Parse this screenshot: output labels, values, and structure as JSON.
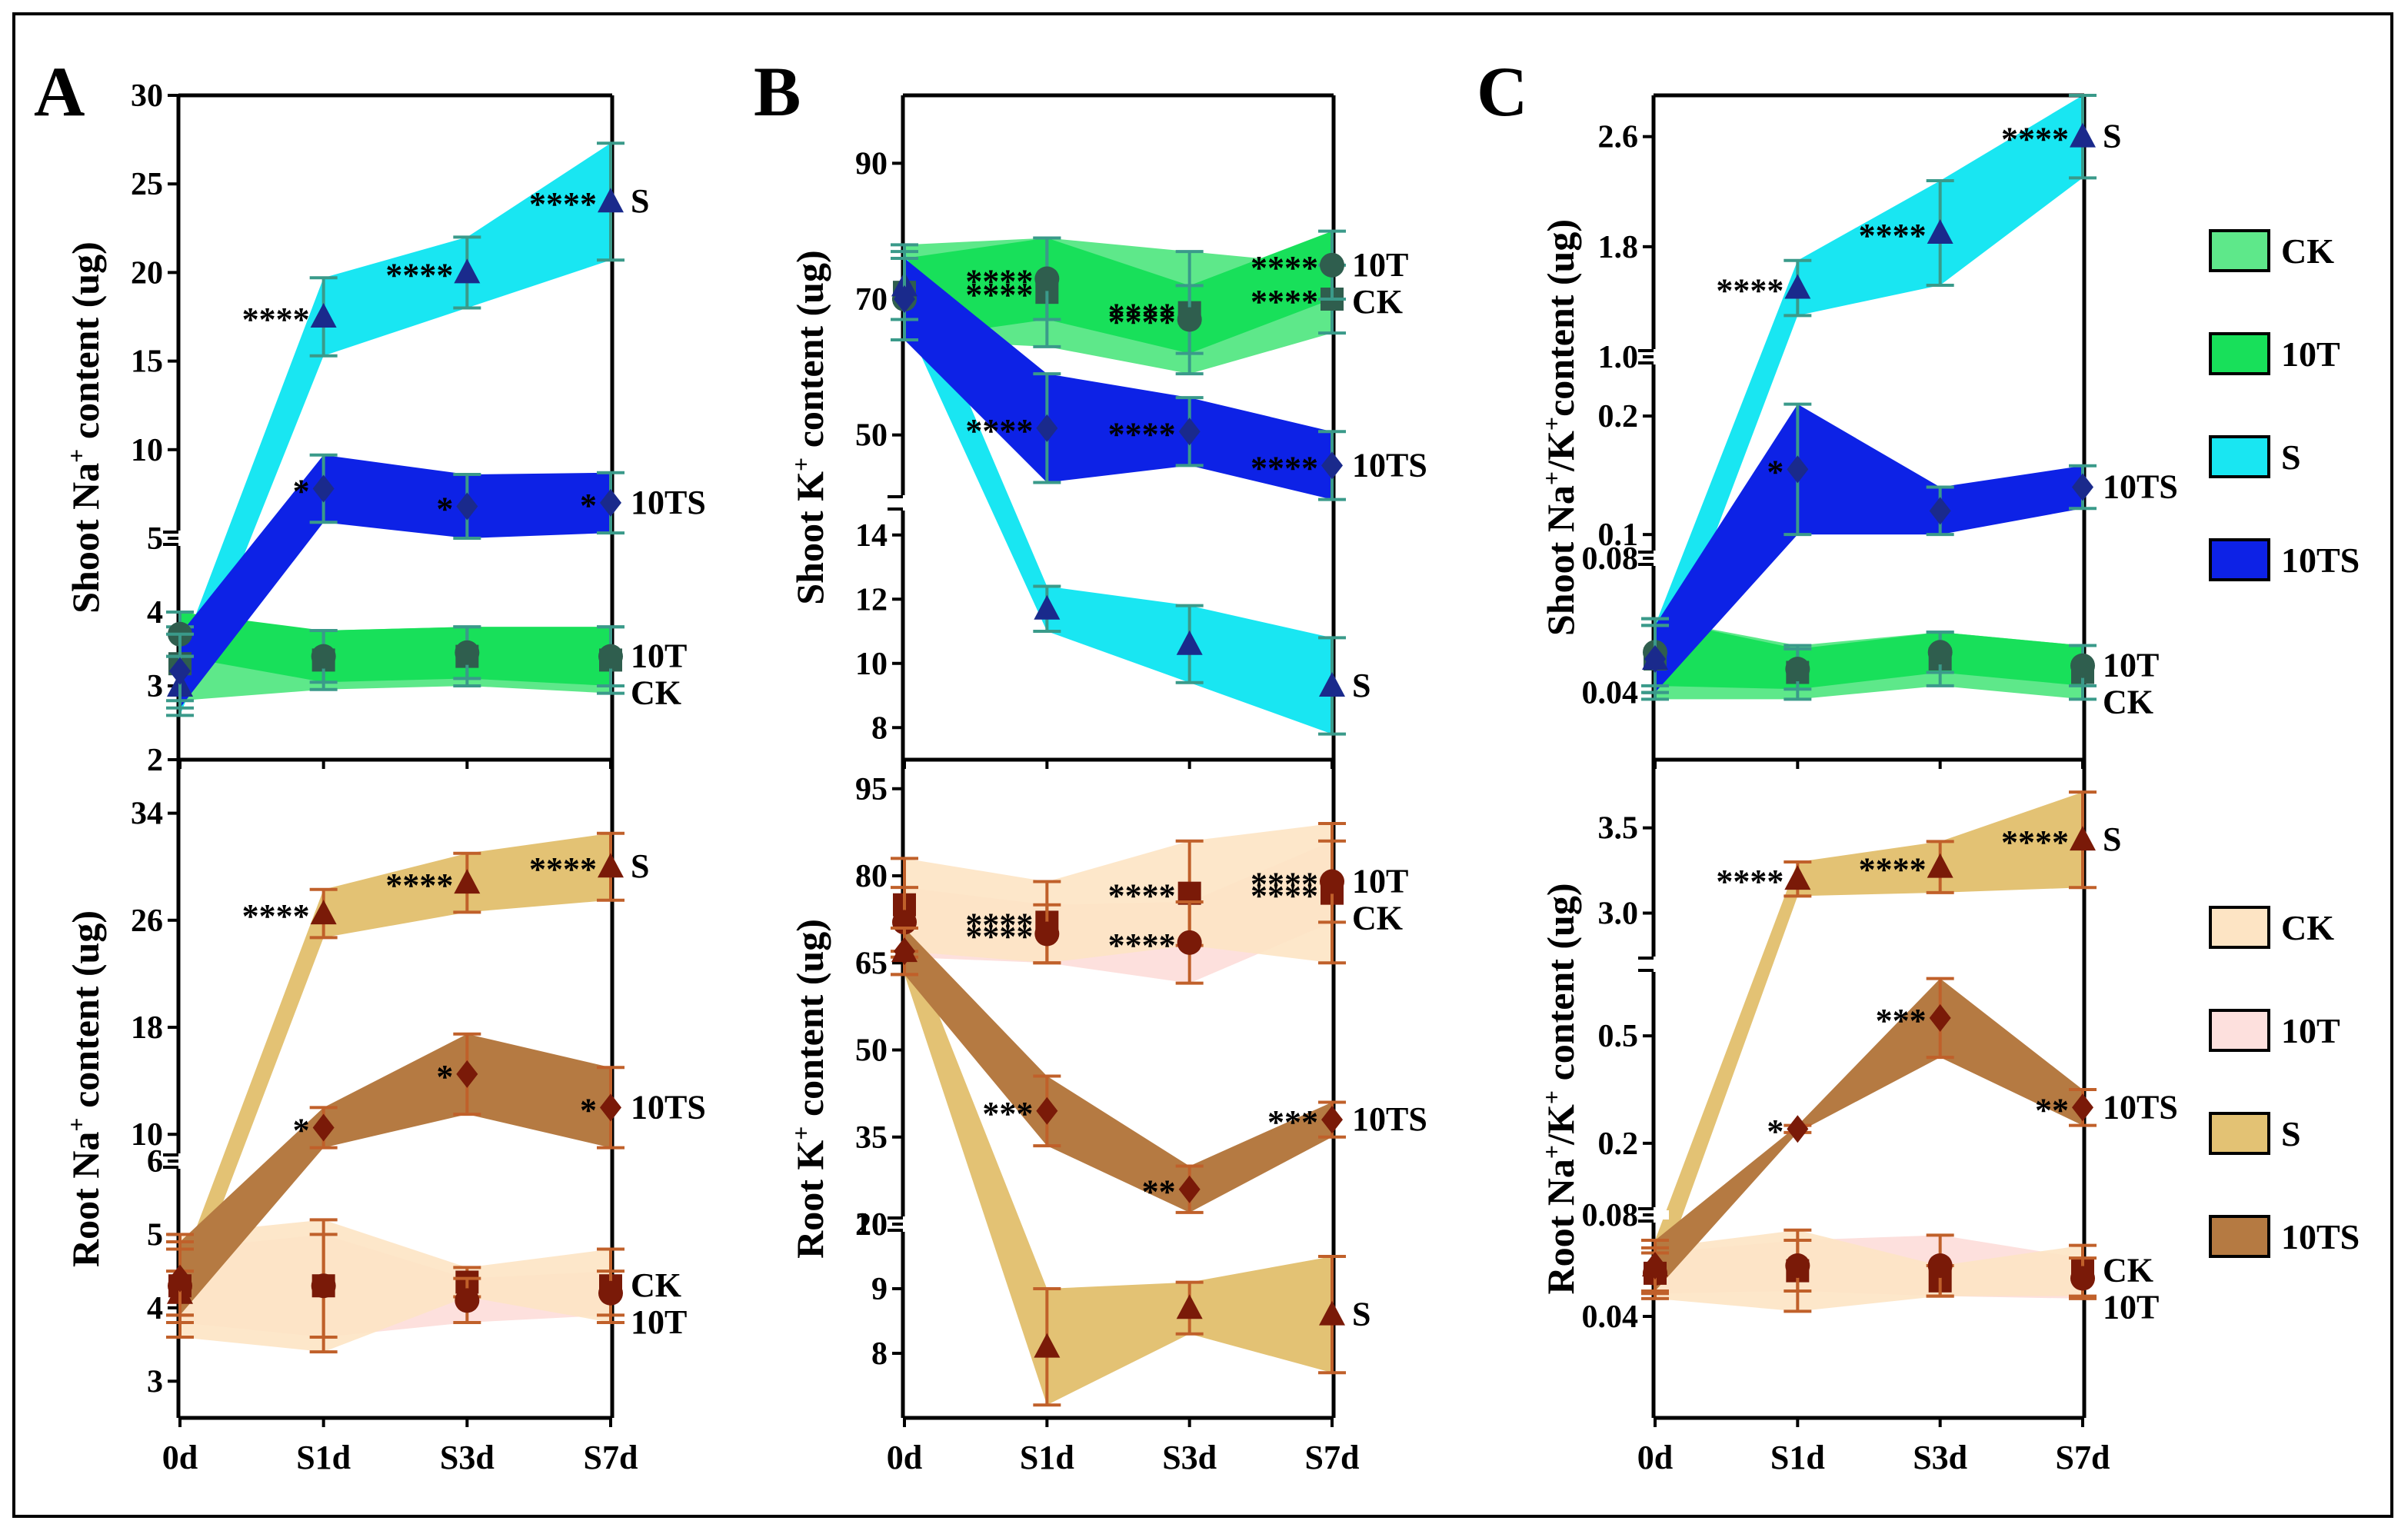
{
  "categories": [
    "0d",
    "S1d",
    "S3d",
    "S7d"
  ],
  "colors": {
    "shoot": {
      "CK": "#5ee88a",
      "10T": "#18e05a",
      "S": "#19e6f2",
      "10TS": "#0d22e6"
    },
    "root": {
      "CK": "#fde4c4",
      "10T": "#fde0dd",
      "S": "#e3c274",
      "10TS": "#b57a42"
    },
    "shoot_marker": "#2f5e4e",
    "shoot_ts_marker": "#1a2a8c",
    "root_marker": "#7a1a08",
    "shoot_errbar": "#3a9a8a",
    "root_errbar": "#c0602a"
  },
  "legend_shoot": [
    "CK",
    "10T",
    "S",
    "10TS"
  ],
  "legend_root": [
    "CK",
    "10T",
    "S",
    "10TS"
  ],
  "chart_data": [
    {
      "type": "line",
      "panel_label": "A",
      "subplot": "upper",
      "ylabel": "Shoot Na+ content (ug)",
      "ylabel_main": "Shoot Na",
      "ylabel_sup": "+",
      "ylabel_tail": " content (ug)",
      "y_segments": [
        {
          "range": [
            2,
            5
          ],
          "ticks": [
            2,
            3,
            4,
            5
          ],
          "tick_labels": [
            "2",
            "3",
            "4",
            "5"
          ]
        },
        {
          "range": [
            5,
            30
          ],
          "ticks": [
            5,
            10,
            15,
            20,
            25,
            30
          ],
          "tick_labels": [
            "",
            "10",
            "15",
            "20",
            "25",
            "30"
          ]
        }
      ],
      "series": [
        {
          "name": "CK",
          "values": [
            3.3,
            3.35,
            3.4,
            3.35
          ],
          "err": [
            0.5,
            0.4,
            0.4,
            0.45
          ],
          "marker": "square",
          "end_label": "CK",
          "stars": [
            "",
            "",
            "",
            ""
          ]
        },
        {
          "name": "10T",
          "values": [
            3.7,
            3.4,
            3.45,
            3.4
          ],
          "err": [
            0.3,
            0.35,
            0.35,
            0.4
          ],
          "marker": "circle",
          "end_label": "10T",
          "stars": [
            "",
            "",
            "",
            ""
          ]
        },
        {
          "name": "S",
          "values": [
            3.0,
            17.5,
            20.0,
            24.0
          ],
          "err": [
            0.4,
            2.2,
            2.0,
            3.3
          ],
          "marker": "triangle",
          "end_label": "S",
          "stars": [
            "",
            "****",
            "****",
            "****"
          ]
        },
        {
          "name": "10TS",
          "values": [
            3.2,
            7.8,
            6.8,
            7.0
          ],
          "err": [
            0.5,
            1.9,
            1.8,
            1.7
          ],
          "marker": "diamond",
          "end_label": "10TS",
          "stars": [
            "",
            "*",
            "*",
            "*"
          ]
        }
      ]
    },
    {
      "type": "line",
      "panel_label": "",
      "subplot": "lower",
      "ylabel": "Root Na+ content (ug)",
      "ylabel_main": "Root Na",
      "ylabel_sup": "+",
      "ylabel_tail": " content (ug)",
      "y_segments": [
        {
          "range": [
            2.5,
            6
          ],
          "ticks": [
            3,
            4,
            5,
            6
          ],
          "tick_labels": [
            "3",
            "4",
            "5",
            "6"
          ]
        },
        {
          "range": [
            8,
            38
          ],
          "ticks": [
            10,
            18,
            26,
            34
          ],
          "tick_labels": [
            "10",
            "18",
            "26",
            "34"
          ]
        }
      ],
      "series": [
        {
          "name": "CK",
          "values": [
            4.3,
            4.3,
            4.35,
            4.3
          ],
          "err": [
            0.7,
            0.9,
            0.2,
            0.5
          ],
          "marker": "square",
          "end_label": "CK",
          "stars": [
            "",
            "",
            "",
            ""
          ]
        },
        {
          "name": "10T",
          "values": [
            4.3,
            4.3,
            4.1,
            4.2
          ],
          "err": [
            0.5,
            0.7,
            0.3,
            0.3
          ],
          "marker": "circle",
          "end_label": "10T",
          "stars": [
            "",
            "",
            "",
            ""
          ]
        },
        {
          "name": "S",
          "values": [
            4.2,
            26.5,
            28.8,
            30.0
          ],
          "err": [
            0.3,
            1.8,
            2.2,
            2.5
          ],
          "marker": "triangle",
          "end_label": "S",
          "stars": [
            "",
            "****",
            "****",
            "****"
          ]
        },
        {
          "name": "10TS",
          "values": [
            4.4,
            10.5,
            14.5,
            12.0
          ],
          "err": [
            0.5,
            1.5,
            3.0,
            3.0
          ],
          "marker": "diamond",
          "end_label": "10TS",
          "stars": [
            "",
            "*",
            "*",
            "*"
          ]
        }
      ]
    },
    {
      "type": "line",
      "panel_label": "B",
      "subplot": "upper",
      "ylabel": "Shoot K+ content (ug)",
      "ylabel_main": "Shoot K",
      "ylabel_sup": "+",
      "ylabel_tail": " content (ug)",
      "y_segments": [
        {
          "range": [
            7,
            15
          ],
          "ticks": [
            8,
            10,
            12,
            14
          ],
          "tick_labels": [
            "8",
            "10",
            "12",
            "14"
          ]
        },
        {
          "range": [
            40,
            100
          ],
          "ticks": [
            50,
            70,
            90
          ],
          "tick_labels": [
            "50",
            "70",
            "90"
          ]
        }
      ],
      "series": [
        {
          "name": "CK",
          "values": [
            71,
            71,
            68,
            70
          ],
          "err": [
            7,
            8,
            9,
            5
          ],
          "marker": "square",
          "end_label": "CK",
          "stars": [
            "",
            "****",
            "****",
            "****"
          ]
        },
        {
          "name": "10T",
          "values": [
            70,
            73,
            67,
            75
          ],
          "err": [
            6,
            6,
            5,
            5
          ],
          "marker": "circle",
          "end_label": "10T",
          "stars": [
            "",
            "****",
            "****",
            "****"
          ]
        },
        {
          "name": "S",
          "values": [
            72,
            11.7,
            10.6,
            9.3
          ],
          "err": [
            5,
            0.7,
            1.2,
            1.5
          ],
          "marker": "triangle",
          "end_label": "S",
          "stars": [
            "",
            "",
            "",
            ""
          ]
        },
        {
          "name": "10TS",
          "values": [
            70,
            51,
            50.5,
            45.5
          ],
          "err": [
            6,
            8,
            5,
            5
          ],
          "marker": "diamond",
          "end_label": "10TS",
          "stars": [
            "",
            "****",
            "****",
            "****"
          ]
        }
      ]
    },
    {
      "type": "line",
      "panel_label": "",
      "subplot": "lower",
      "ylabel": "Root K+ content (ug)",
      "ylabel_main": "Root K",
      "ylabel_sup": "+",
      "ylabel_tail": " content (ug)",
      "y_segments": [
        {
          "range": [
            7,
            10
          ],
          "ticks": [
            8,
            9,
            10
          ],
          "tick_labels": [
            "8",
            "9",
            "10"
          ]
        },
        {
          "range": [
            20,
            100
          ],
          "ticks": [
            20,
            35,
            50,
            65,
            80,
            95
          ],
          "tick_labels": [
            "20",
            "35",
            "50",
            "65",
            "80",
            "95"
          ]
        }
      ],
      "series": [
        {
          "name": "CK",
          "values": [
            75,
            72,
            77,
            77
          ],
          "err": [
            8,
            7,
            9,
            12
          ],
          "marker": "square",
          "end_label": "CK",
          "stars": [
            "",
            "****",
            "****",
            "****"
          ]
        },
        {
          "name": "10T",
          "values": [
            72,
            70,
            68.5,
            79
          ],
          "err": [
            6,
            5,
            7,
            7
          ],
          "marker": "circle",
          "end_label": "10T",
          "stars": [
            "",
            "****",
            "****",
            "****"
          ]
        },
        {
          "name": "S",
          "values": [
            67,
            8.1,
            8.7,
            8.6
          ],
          "err": [
            4,
            0.9,
            0.4,
            0.9
          ],
          "marker": "triangle",
          "end_label": "S",
          "stars": [
            "",
            "",
            "",
            ""
          ]
        },
        {
          "name": "10TS",
          "values": [
            67,
            39.5,
            26,
            38
          ],
          "err": [
            4,
            6,
            4,
            3
          ],
          "marker": "diamond",
          "end_label": "10TS",
          "stars": [
            "",
            "***",
            "**",
            "***"
          ]
        }
      ]
    },
    {
      "type": "line",
      "panel_label": "C",
      "subplot": "upper",
      "ylabel": "Shoot Na+/K+ content (ug)",
      "ylabel_main": "Shoot Na",
      "ylabel_sup": "+",
      "ylabel_mid": "/K",
      "ylabel_sup2": "+",
      "ylabel_tail": "content (ug)",
      "y_segments": [
        {
          "range": [
            0.02,
            0.08
          ],
          "ticks": [
            0.04,
            0.08
          ],
          "tick_labels": [
            "0.04",
            "0.08"
          ]
        },
        {
          "range": [
            0.08,
            0.25
          ],
          "ticks": [
            0.1,
            0.2
          ],
          "tick_labels": [
            "0.1",
            "0.2"
          ]
        },
        {
          "range": [
            1.0,
            2.9
          ],
          "ticks": [
            1.0,
            1.8,
            2.6
          ],
          "tick_labels": [
            "1.0",
            "1.8",
            "2.6"
          ]
        }
      ],
      "series": [
        {
          "name": "CK",
          "values": [
            0.05,
            0.046,
            0.05,
            0.046
          ],
          "err": [
            0.012,
            0.008,
            0.008,
            0.008
          ],
          "marker": "square",
          "end_label": "CK",
          "stars": [
            "",
            "",
            "",
            ""
          ]
        },
        {
          "name": "10T",
          "values": [
            0.052,
            0.047,
            0.052,
            0.048
          ],
          "err": [
            0.01,
            0.006,
            0.006,
            0.006
          ],
          "marker": "circle",
          "end_label": "10T",
          "stars": [
            "",
            "",
            "",
            ""
          ]
        },
        {
          "name": "S",
          "values": [
            0.05,
            1.5,
            1.9,
            2.6
          ],
          "err": [
            0.01,
            0.2,
            0.38,
            0.3
          ],
          "marker": "triangle",
          "end_label": "S",
          "stars": [
            "",
            "****",
            "****",
            "****"
          ]
        },
        {
          "name": "10TS",
          "values": [
            0.05,
            0.155,
            0.12,
            0.14
          ],
          "err": [
            0.01,
            0.055,
            0.02,
            0.018
          ],
          "marker": "diamond",
          "end_label": "10TS",
          "stars": [
            "",
            "*",
            "",
            ""
          ]
        }
      ]
    },
    {
      "type": "line",
      "panel_label": "",
      "subplot": "lower",
      "ylabel": "Root Na+/K+ content (ug)",
      "ylabel_main": "Root Na",
      "ylabel_sup": "+",
      "ylabel_mid": "/K",
      "ylabel_sup2": "+",
      "ylabel_tail": " content (ug)",
      "y_segments": [
        {
          "range": [
            0.0,
            0.08
          ],
          "ticks": [
            0.04,
            0.08
          ],
          "tick_labels": [
            "0.04",
            "0.08"
          ]
        },
        {
          "range": [
            0.0,
            0.7
          ],
          "ticks": [
            0.2,
            0.5
          ],
          "tick_labels": [
            "0.2",
            "0.5"
          ]
        },
        {
          "range": [
            2.7,
            3.9
          ],
          "ticks": [
            3.0,
            3.5
          ],
          "tick_labels": [
            "3.0",
            "3.5"
          ]
        }
      ],
      "series": [
        {
          "name": "CK",
          "values": [
            0.057,
            0.058,
            0.054,
            0.058
          ],
          "err": [
            0.01,
            0.016,
            0.006,
            0.01
          ],
          "marker": "square",
          "end_label": "CK",
          "stars": [
            "",
            "",
            "",
            ""
          ]
        },
        {
          "name": "10T",
          "values": [
            0.057,
            0.06,
            0.06,
            0.055
          ],
          "err": [
            0.008,
            0.01,
            0.012,
            0.008
          ],
          "marker": "circle",
          "end_label": "10T",
          "stars": [
            "",
            "",
            "",
            ""
          ]
        },
        {
          "name": "S",
          "values": [
            0.06,
            3.2,
            3.27,
            3.43
          ],
          "err": [
            0.01,
            0.1,
            0.15,
            0.28
          ],
          "marker": "triangle",
          "end_label": "S",
          "stars": [
            "",
            "****",
            "****",
            "****"
          ]
        },
        {
          "name": "10TS",
          "values": [
            0.06,
            0.24,
            0.55,
            0.3
          ],
          "err": [
            0.01,
            0.01,
            0.11,
            0.05
          ],
          "marker": "diamond",
          "end_label": "10TS",
          "stars": [
            "",
            "*",
            "***",
            "**"
          ]
        }
      ]
    }
  ]
}
